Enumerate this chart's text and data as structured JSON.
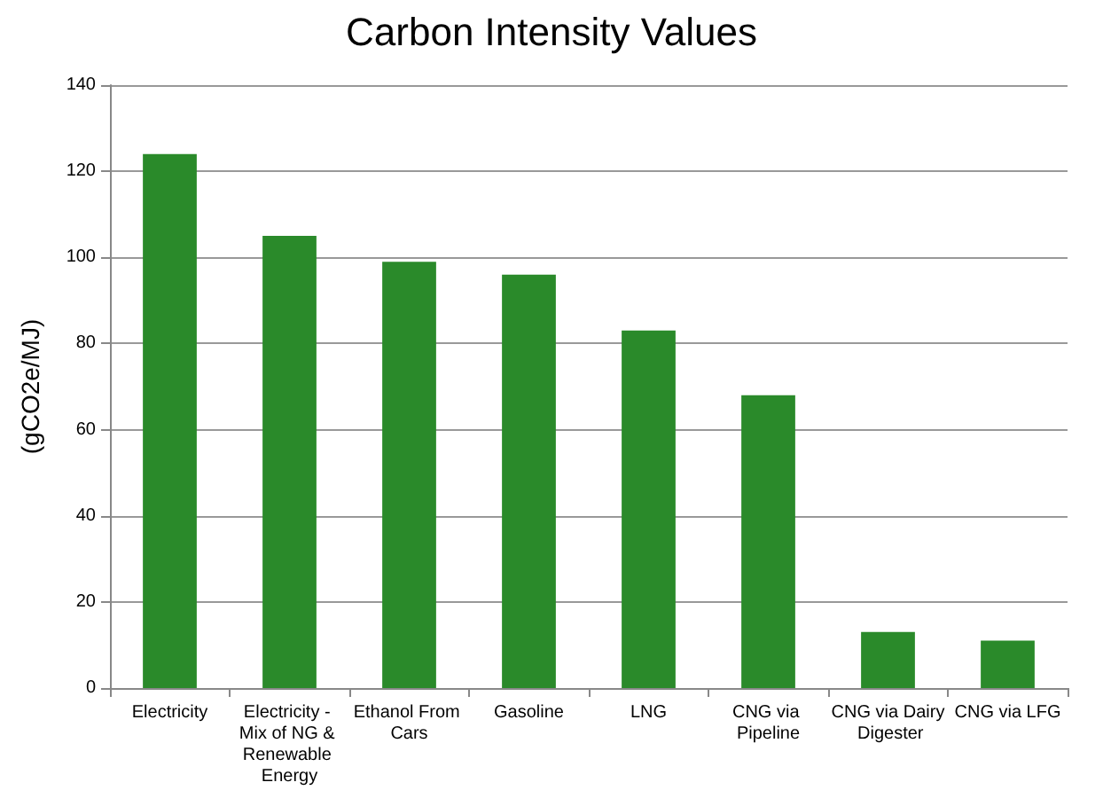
{
  "chart_data": {
    "type": "bar",
    "title": "Carbon Intensity Values",
    "ylabel": "(gCO2e/MJ)",
    "categories": [
      "Electricity",
      "Electricity - Mix of NG & Renewable Energy",
      "Ethanol From Cars",
      "Gasoline",
      "LNG",
      "CNG via Pipeline",
      "CNG via Dairy Digester",
      "CNG via LFG"
    ],
    "values": [
      124,
      105,
      99,
      96,
      83,
      68,
      13,
      11
    ],
    "color": "#2a8a2a",
    "ylim": [
      0,
      140
    ],
    "yticks": [
      0,
      20,
      40,
      60,
      80,
      100,
      120,
      140
    ],
    "grid": "y"
  }
}
